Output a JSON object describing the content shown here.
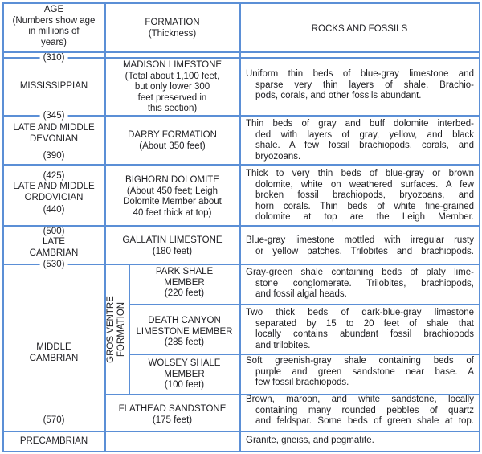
{
  "header": {
    "age": [
      "AGE",
      "(Numbers show age",
      "in millions of",
      "years)"
    ],
    "formation": [
      "FORMATION",
      "(Thickness)"
    ],
    "rocks": "ROCKS AND FOSSILS"
  },
  "ages": {
    "a310": "(310)",
    "a345": "(345)",
    "a390": "(390)",
    "a425": "(425)",
    "a440": "(440)",
    "a500": "(500)",
    "a530": "(530)",
    "a570": "(570)"
  },
  "periods": {
    "mississippian": [
      "MISSISSIPPIAN"
    ],
    "devonian": [
      "LATE AND MIDDLE",
      "DEVONIAN"
    ],
    "ordovician": [
      "LATE AND MIDDLE",
      "ORDOVICIAN"
    ],
    "late_cambrian": [
      "LATE",
      "CAMBRIAN"
    ],
    "middle_cambrian": [
      "MIDDLE",
      "CAMBRIAN"
    ],
    "precambrian": [
      "PRECAMBRIAN"
    ]
  },
  "group": [
    "GROS VENTRE",
    "FORMATION"
  ],
  "formations": {
    "madison": [
      "MADISON LIMESTONE",
      "(Total about 1,100 feet,",
      "but only lower 300",
      "feet preserved in",
      "this section)"
    ],
    "darby": [
      "DARBY FORMATION",
      "(About 350 feet)"
    ],
    "bighorn": [
      "BIGHORN DOLOMITE",
      "(About 450 feet; Leigh",
      "Dolomite Member about",
      "40 feet thick at top)"
    ],
    "gallatin": [
      "GALLATIN LIMESTONE",
      "(180 feet)"
    ],
    "park": [
      "PARK SHALE",
      "MEMBER",
      "(220 feet)"
    ],
    "death": [
      "DEATH CANYON",
      "LIMESTONE MEMBER",
      "(285 feet)"
    ],
    "wolsey": [
      "WOLSEY SHALE",
      "MEMBER",
      "(100 feet)"
    ],
    "flathead": [
      "FLATHEAD SANDSTONE",
      "(175 feet)"
    ]
  },
  "rocks": {
    "madison": [
      "Uniform thin beds of blue-gray limestone and",
      "sparse very thin layers of shale. Brachio-",
      "pods, corals, and other fossils abundant."
    ],
    "darby": [
      "Thin beds of gray and buff dolomite interbed-",
      "ded with layers of gray, yellow, and black",
      "shale. A few fossil brachiopods, corals, and",
      "bryozoans."
    ],
    "bighorn": [
      "Thick to very thin beds of blue-gray or brown",
      "dolomite, white on weathered surfaces. A few",
      "broken fossil brachiopods, bryozoans, and",
      "horn corals. Thin beds of white fine-grained",
      "dolomite at top are the Leigh Member."
    ],
    "gallatin": [
      "Blue-gray limestone mottled with irregular rusty",
      "or yellow patches. Trilobites and brachiopods."
    ],
    "park": [
      "Gray-green shale containing beds of platy lime-",
      "stone conglomerate. Trilobites, brachiopods,",
      "and fossil algal heads."
    ],
    "death": [
      "Two thick beds of dark-blue-gray limestone",
      "separated by 15 to 20 feet of shale that",
      "locally contains abundant fossil brachiopods",
      "and trilobites."
    ],
    "wolsey": [
      "Soft greenish-gray shale containing beds of",
      "purple and green sandstone near base. A",
      "few fossil brachiopods."
    ],
    "flathead": [
      "Brown, maroon, and white sandstone, locally",
      "containing many rounded pebbles of quartz",
      "and feldspar. Some beds of green shale at top."
    ],
    "precambrian": [
      "Granite, gneiss, and pegmatite."
    ]
  },
  "colors": {
    "rule": "#5b8fd6",
    "text": "#1e1e22"
  }
}
